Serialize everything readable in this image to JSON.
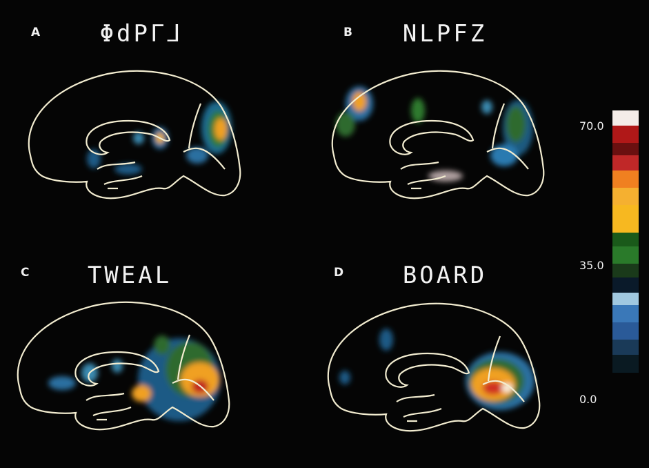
{
  "panels": [
    {
      "letter": "A",
      "title": "ΦdPΓ⅃"
    },
    {
      "letter": "B",
      "title": "NLPFZ"
    },
    {
      "letter": "C",
      "title": "TWEAL"
    },
    {
      "letter": "D",
      "title": "BOARD"
    }
  ],
  "colorbar": {
    "labels": [
      "70.0",
      "35.0",
      "0.0"
    ]
  }
}
